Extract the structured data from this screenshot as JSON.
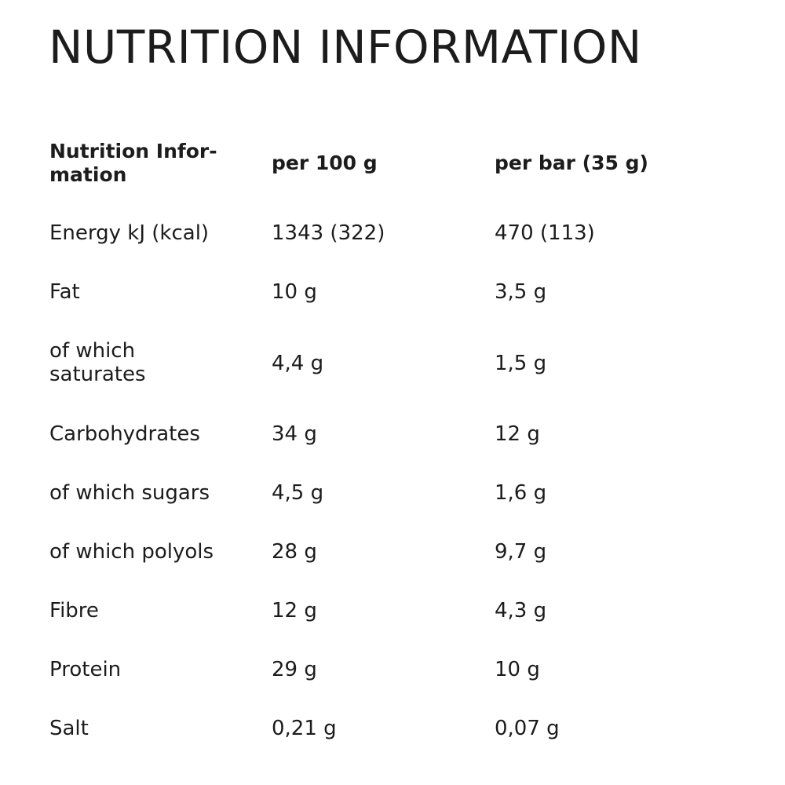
{
  "title": "NUTRITION INFORMATION",
  "table": {
    "headers": [
      "Nutrition Infor-\nmation",
      "per 100 g",
      "per bar (35 g)"
    ],
    "rows": [
      {
        "label": "Energy kJ (kcal)",
        "per_100g": "1343 (322)",
        "per_bar": "470 (113)"
      },
      {
        "label": "Fat",
        "per_100g": "10 g",
        "per_bar": "3,5 g"
      },
      {
        "label": "of which\nsaturates",
        "per_100g": "4,4 g",
        "per_bar": "1,5 g"
      },
      {
        "label": "Carbohydrates",
        "per_100g": "34 g",
        "per_bar": "12 g"
      },
      {
        "label": "of which sugars",
        "per_100g": "4,5 g",
        "per_bar": "1,6 g"
      },
      {
        "label": "of which polyols",
        "per_100g": "28 g",
        "per_bar": "9,7 g"
      },
      {
        "label": "Fibre",
        "per_100g": "12 g",
        "per_bar": "4,3 g"
      },
      {
        "label": "Protein",
        "per_100g": "29 g",
        "per_bar": "10 g"
      },
      {
        "label": "Salt",
        "per_100g": "0,21 g",
        "per_bar": "0,07 g"
      }
    ]
  }
}
